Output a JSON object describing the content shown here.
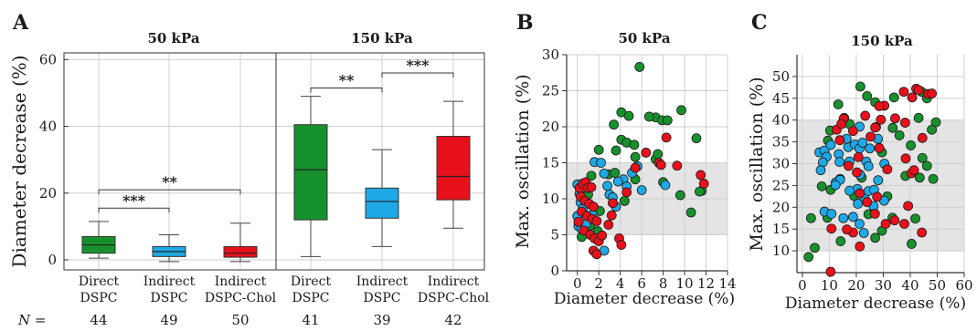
{
  "colors": {
    "green": "#17912d",
    "blue": "#1ea9e6",
    "red": "#e8101b",
    "grid": "#cfcfcf",
    "band": "#e4e4e4",
    "axis": "#333333"
  },
  "chart_data": [
    {
      "panel": "A",
      "type": "box",
      "ylabel": "Diameter decrease (%)",
      "ylim": [
        -3,
        62
      ],
      "yticks": [
        0,
        20,
        40,
        60
      ],
      "grid": true,
      "groups": [
        {
          "title": "50 kPa",
          "boxes": [
            {
              "label_1": "Direct",
              "label_2": "DSPC",
              "n": "44",
              "color": "green",
              "whisker_low": 0.5,
              "q1": 2,
              "median": 4.5,
              "q3": 7,
              "whisker_high": 11.5
            },
            {
              "label_1": "Indirect",
              "label_2": "DSPC",
              "n": "49",
              "color": "blue",
              "whisker_low": -0.5,
              "q1": 1,
              "median": 2.5,
              "q3": 4,
              "whisker_high": 7.5
            },
            {
              "label_1": "Indirect",
              "label_2": "DSPC-Chol",
              "n": "50",
              "color": "red",
              "whisker_low": -0.5,
              "q1": 0.8,
              "median": 2,
              "q3": 4,
              "whisker_high": 11
            }
          ],
          "brackets": [
            {
              "from": 0,
              "to": 1,
              "y": 15.5,
              "text": "***"
            },
            {
              "from": 0,
              "to": 2,
              "y": 21,
              "text": "**"
            }
          ]
        },
        {
          "title": "150 kPa",
          "boxes": [
            {
              "label_1": "Direct",
              "label_2": "DSPC",
              "n": "41",
              "color": "green",
              "whisker_low": 1,
              "q1": 12,
              "median": 27,
              "q3": 40.5,
              "whisker_high": 49
            },
            {
              "label_1": "Indirect",
              "label_2": "DSPC",
              "n": "39",
              "color": "blue",
              "whisker_low": 4,
              "q1": 12.5,
              "median": 17.5,
              "q3": 21.5,
              "whisker_high": 33
            },
            {
              "label_1": "Indirect",
              "label_2": "DSPC-Chol",
              "n": "42",
              "color": "red",
              "whisker_low": 9.5,
              "q1": 18,
              "median": 25,
              "q3": 37,
              "whisker_high": 47.5
            }
          ],
          "brackets": [
            {
              "from": 0,
              "to": 1,
              "y": 51.5,
              "text": "**"
            },
            {
              "from": 1,
              "to": 2,
              "y": 56,
              "text": "***"
            }
          ]
        }
      ],
      "n_prefix": "N =",
      "n_prefix_italic": "N"
    },
    {
      "panel": "B",
      "type": "scatter",
      "title": "50 kPa",
      "xlabel": "Diameter decrease (%)",
      "ylabel": "Max. oscillation (%)",
      "xlim": [
        -1,
        14
      ],
      "ylim": [
        0,
        30
      ],
      "xticks": [
        0,
        2,
        4,
        6,
        8,
        10,
        12,
        14
      ],
      "yticks": [
        0,
        5,
        10,
        15,
        20,
        25,
        30
      ],
      "band": [
        5,
        15
      ],
      "grid": true,
      "series": [
        {
          "color": "green",
          "points": [
            [
              5.8,
              28.3
            ],
            [
              4.1,
              22
            ],
            [
              7.3,
              21.3
            ],
            [
              6.7,
              21.4
            ],
            [
              7.9,
              20.9
            ],
            [
              8.4,
              20.9
            ],
            [
              9.7,
              22.3
            ],
            [
              3.4,
              20.3
            ],
            [
              4.8,
              21.5
            ],
            [
              11.1,
              18.4
            ],
            [
              4.1,
              18.2
            ],
            [
              4.6,
              17.8
            ],
            [
              2,
              16.8
            ],
            [
              3.6,
              16.7
            ],
            [
              5.3,
              17.5
            ],
            [
              5.4,
              15.8
            ],
            [
              7.3,
              15.5
            ],
            [
              7.5,
              16.2
            ],
            [
              1.3,
              13.2
            ],
            [
              2.9,
              13.4
            ],
            [
              3.5,
              13.6
            ],
            [
              5.4,
              12.7
            ],
            [
              8,
              12.3
            ],
            [
              11.6,
              11.1
            ],
            [
              11.4,
              11
            ],
            [
              9.6,
              10.5
            ],
            [
              10.6,
              8.1
            ],
            [
              0.6,
              12
            ],
            [
              1,
              10.6
            ],
            [
              1.2,
              6.3
            ],
            [
              1.9,
              5.5
            ],
            [
              2.1,
              8.3
            ],
            [
              4.4,
              9.7
            ],
            [
              0.4,
              4.7
            ]
          ]
        },
        {
          "color": "blue",
          "points": [
            [
              0,
              12
            ],
            [
              0.2,
              10.7
            ],
            [
              0.3,
              9.5
            ],
            [
              0.5,
              8.6
            ],
            [
              0,
              7.6
            ],
            [
              0.1,
              6.2
            ],
            [
              0.4,
              5.8
            ],
            [
              0.8,
              6.5
            ],
            [
              1.4,
              7.8
            ],
            [
              1.6,
              15.1
            ],
            [
              2.2,
              15
            ],
            [
              2.5,
              13.5
            ],
            [
              2.8,
              11.8
            ],
            [
              3,
              10.6
            ],
            [
              3.3,
              10.2
            ],
            [
              3.6,
              8.9
            ],
            [
              4.3,
              12.7
            ],
            [
              4.6,
              11.7
            ],
            [
              5.1,
              13.6
            ],
            [
              5.6,
              14.5
            ],
            [
              6,
              11.2
            ],
            [
              2.5,
              2.8
            ],
            [
              8.2,
              11.9
            ],
            [
              3.8,
              12.4
            ]
          ]
        },
        {
          "color": "red",
          "points": [
            [
              0.2,
              11.5
            ],
            [
              0.5,
              12.1
            ],
            [
              0.8,
              12.3
            ],
            [
              1,
              11.5
            ],
            [
              1.3,
              11.6
            ],
            [
              0.3,
              10.3
            ],
            [
              0.7,
              9.7
            ],
            [
              1.1,
              9.3
            ],
            [
              1.5,
              8.9
            ],
            [
              0.4,
              8.2
            ],
            [
              0.9,
              7.6
            ],
            [
              1.4,
              7.2
            ],
            [
              1.8,
              6.9
            ],
            [
              0.6,
              5.6
            ],
            [
              1.2,
              5
            ],
            [
              1.6,
              4.5
            ],
            [
              2,
              4.1
            ],
            [
              1.5,
              2.8
            ],
            [
              1.8,
              2.3
            ],
            [
              2.3,
              4.9
            ],
            [
              2.9,
              6.4
            ],
            [
              3.2,
              7.7
            ],
            [
              3.9,
              4.5
            ],
            [
              4.1,
              3.6
            ],
            [
              5.4,
              14.3
            ],
            [
              6.4,
              16.4
            ],
            [
              7.6,
              15
            ],
            [
              7.8,
              14.7
            ],
            [
              8.3,
              18.5
            ],
            [
              9.3,
              14.6
            ],
            [
              11.5,
              13.3
            ],
            [
              11.8,
              12.1
            ],
            [
              3.3,
              9.4
            ],
            [
              4.6,
              10.9
            ],
            [
              0.1,
              6.8
            ]
          ]
        }
      ]
    },
    {
      "panel": "C",
      "type": "scatter",
      "title": "150 kPa",
      "xlabel": "Diameter decrease (%)",
      "ylabel": "Max. oscillation (%)",
      "xlim": [
        -2,
        60
      ],
      "ylim": [
        5,
        55
      ],
      "xticks": [
        0,
        10,
        20,
        30,
        40,
        50,
        60
      ],
      "yticks": [
        10,
        15,
        20,
        25,
        30,
        35,
        40,
        45,
        50
      ],
      "band": [
        10,
        40
      ],
      "grid": true,
      "series": [
        {
          "color": "green",
          "points": [
            [
              21.5,
              47.7
            ],
            [
              24,
              45.5
            ],
            [
              13.3,
              43.6
            ],
            [
              27,
              44.1
            ],
            [
              34,
              45.2
            ],
            [
              44.2,
              46.5
            ],
            [
              46.2,
              45
            ],
            [
              43.1,
              40.5
            ],
            [
              49.5,
              39.5
            ],
            [
              48,
              37.8
            ],
            [
              15.5,
              40.5
            ],
            [
              17.5,
              39.1
            ],
            [
              10.3,
              37.6
            ],
            [
              9.5,
              35.3
            ],
            [
              27.3,
              38.4
            ],
            [
              33.5,
              38.2
            ],
            [
              36,
              36.5
            ],
            [
              40.2,
              34.2
            ],
            [
              29.5,
              32.6
            ],
            [
              44.5,
              31.3
            ],
            [
              46.2,
              29.5
            ],
            [
              48.5,
              26.5
            ],
            [
              43.5,
              26.8
            ],
            [
              38.2,
              27.2
            ],
            [
              14,
              26.5
            ],
            [
              22,
              26.8
            ],
            [
              7.2,
              24.8
            ],
            [
              10.5,
              24
            ],
            [
              19.2,
              22.6
            ],
            [
              31.5,
              22.5
            ],
            [
              3.2,
              17.5
            ],
            [
              9.3,
              17.6
            ],
            [
              24.5,
              18.4
            ],
            [
              33.4,
              17.6
            ],
            [
              41.9,
              17.4
            ],
            [
              29.5,
              14.6
            ],
            [
              27,
              13
            ],
            [
              14.2,
              12.2
            ],
            [
              40.5,
              11.6
            ],
            [
              4.6,
              10.7
            ],
            [
              2.3,
              8.6
            ]
          ]
        },
        {
          "color": "blue",
          "points": [
            [
              6.3,
              32.6
            ],
            [
              8.2,
              33
            ],
            [
              13.5,
              32.2
            ],
            [
              17,
              33.8
            ],
            [
              19.5,
              34.4
            ],
            [
              21.2,
              33.5
            ],
            [
              22.3,
              34.8
            ],
            [
              25,
              33.5
            ],
            [
              16.4,
              35.7
            ],
            [
              23.7,
              30.5
            ],
            [
              24.5,
              29.4
            ],
            [
              21.4,
              27.5
            ],
            [
              17.5,
              30.5
            ],
            [
              9,
              31.6
            ],
            [
              7.6,
              30.3
            ],
            [
              12.4,
              25.7
            ],
            [
              20.4,
              24.2
            ],
            [
              23,
              22.2
            ],
            [
              17.5,
              23.8
            ],
            [
              24.5,
              23.7
            ],
            [
              8.2,
              19
            ],
            [
              10.8,
              18.5
            ],
            [
              15.2,
              17.5
            ],
            [
              18.8,
              17.8
            ],
            [
              21.2,
              16.2
            ],
            [
              30.3,
              21.5
            ],
            [
              20.6,
              20.8
            ],
            [
              22.8,
              14.1
            ],
            [
              26.6,
              24
            ],
            [
              26.4,
              20.3
            ],
            [
              28.1,
              26.2
            ],
            [
              10.5,
              34.3
            ],
            [
              21.2,
              38.5
            ],
            [
              30.4,
              30
            ],
            [
              28,
              35.7
            ],
            [
              14,
              26.3
            ],
            [
              12.3,
              25.1
            ],
            [
              6.8,
              28.5
            ],
            [
              13.8,
              30.4
            ]
          ]
        },
        {
          "color": "red",
          "points": [
            [
              10.5,
              5.2
            ],
            [
              21.3,
              11
            ],
            [
              18.8,
              14.2
            ],
            [
              10.8,
              15.1
            ],
            [
              16.5,
              14.9
            ],
            [
              30.9,
              16.2
            ],
            [
              34.2,
              17
            ],
            [
              37.8,
              16.2
            ],
            [
              44.3,
              14.2
            ],
            [
              24,
              21.2
            ],
            [
              27.7,
              22.4
            ],
            [
              39.2,
              20.3
            ],
            [
              26.9,
              18.5
            ],
            [
              31.5,
              28.7
            ],
            [
              38.3,
              31.2
            ],
            [
              40.4,
              27.8
            ],
            [
              41.4,
              28.5
            ],
            [
              44.5,
              35.9
            ],
            [
              20.2,
              28
            ],
            [
              17.1,
              29.5
            ],
            [
              20.8,
              31.5
            ],
            [
              28.5,
              33.6
            ],
            [
              13.9,
              35.4
            ],
            [
              18.8,
              37.5
            ],
            [
              12.7,
              37.8
            ],
            [
              15.3,
              40.3
            ],
            [
              27,
              38.3
            ],
            [
              29.1,
              40.1
            ],
            [
              38.1,
              39.4
            ],
            [
              40.7,
              45.2
            ],
            [
              37.6,
              46.5
            ],
            [
              42.2,
              47.2
            ],
            [
              46.6,
              46
            ],
            [
              48,
              46.1
            ],
            [
              43.1,
              46.9
            ],
            [
              30.4,
              43.3
            ],
            [
              28.5,
              43.2
            ],
            [
              23.3,
              41
            ],
            [
              34.4,
              40.4
            ],
            [
              25.3,
              36.2
            ],
            [
              14.5,
              39.1
            ],
            [
              21.3,
              23.2
            ]
          ]
        }
      ]
    }
  ]
}
